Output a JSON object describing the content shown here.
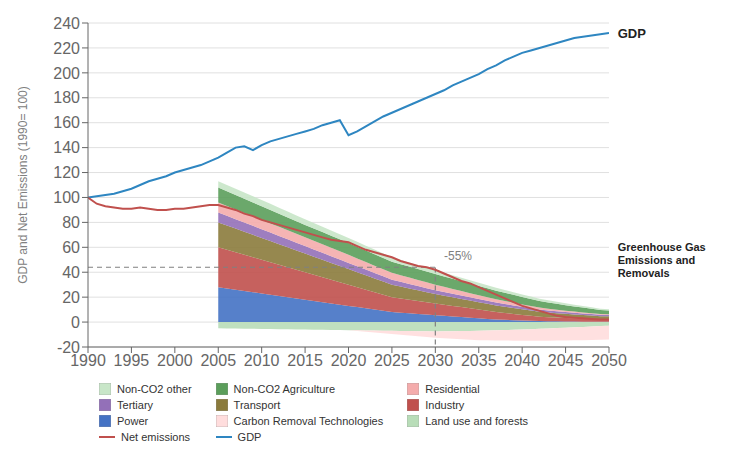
{
  "chart_data": {
    "type": "area",
    "stacked": true,
    "grid": true,
    "ylabel": "GDP and Net Emissions (1990= 100)",
    "xlim": [
      1990,
      2050
    ],
    "ylim": [
      -20,
      240
    ],
    "xticks": [
      1990,
      1995,
      2000,
      2005,
      2010,
      2015,
      2020,
      2025,
      2030,
      2035,
      2040,
      2045,
      2050
    ],
    "yticks": [
      -20,
      0,
      20,
      40,
      60,
      80,
      100,
      120,
      140,
      160,
      180,
      200,
      220,
      240
    ],
    "x": [
      1990,
      1991,
      1992,
      1993,
      1994,
      1995,
      1996,
      1997,
      1998,
      1999,
      2000,
      2001,
      2002,
      2003,
      2004,
      2005,
      2006,
      2007,
      2008,
      2009,
      2010,
      2011,
      2012,
      2013,
      2014,
      2015,
      2016,
      2017,
      2018,
      2019,
      2020,
      2021,
      2022,
      2023,
      2024,
      2025,
      2026,
      2027,
      2028,
      2029,
      2030,
      2031,
      2032,
      2033,
      2034,
      2035,
      2036,
      2037,
      2038,
      2039,
      2040,
      2041,
      2042,
      2043,
      2044,
      2045,
      2046,
      2047,
      2048,
      2049,
      2050
    ],
    "series": [
      {
        "name": "Non-CO2 other",
        "type": "area",
        "color": "#C8E6C8",
        "values": [
          null,
          null,
          null,
          null,
          null,
          null,
          null,
          null,
          null,
          null,
          null,
          null,
          null,
          null,
          null,
          5,
          5,
          5,
          5,
          5,
          5,
          4.9,
          4.8,
          4.7,
          4.6,
          4.5,
          4.4,
          4.3,
          4.2,
          4.1,
          4,
          3.9,
          3.8,
          3.7,
          3.6,
          3.5,
          3.4,
          3.3,
          3.2,
          3.1,
          3,
          2.9,
          2.8,
          2.7,
          2.6,
          2.5,
          2.4,
          2.3,
          2.2,
          2.1,
          2,
          1.9,
          1.8,
          1.7,
          1.6,
          1.5,
          1.4,
          1.3,
          1.2,
          1.1,
          1
        ]
      },
      {
        "name": "Non-CO2 Agriculture",
        "type": "area",
        "color": "#5B9E5B",
        "values": [
          null,
          null,
          null,
          null,
          null,
          null,
          null,
          null,
          null,
          null,
          null,
          null,
          null,
          null,
          null,
          12,
          11.8,
          11.6,
          11.4,
          11.2,
          11,
          10.8,
          10.6,
          10.4,
          10.2,
          10,
          9.9,
          9.8,
          9.7,
          9.6,
          9.5,
          9.4,
          9.3,
          9.2,
          9.1,
          9,
          8.9,
          8.8,
          8.7,
          8.6,
          8.5,
          8.3,
          8.1,
          7.9,
          7.7,
          7.5,
          7.2,
          6.9,
          6.6,
          6.3,
          6,
          5.7,
          5.4,
          5.1,
          4.8,
          4.5,
          4.2,
          3.9,
          3.5,
          3.2,
          3
        ]
      },
      {
        "name": "Residential",
        "type": "area",
        "color": "#F4ACAC",
        "values": [
          null,
          null,
          null,
          null,
          null,
          null,
          null,
          null,
          null,
          null,
          null,
          null,
          null,
          null,
          null,
          8,
          7.9,
          7.8,
          7.7,
          7.6,
          7.5,
          7.4,
          7.3,
          7.2,
          7.1,
          7,
          6.9,
          6.8,
          6.7,
          6.6,
          6.5,
          6.3,
          6.1,
          5.9,
          5.7,
          5.5,
          5.3,
          5.1,
          4.9,
          4.7,
          4.5,
          4.2,
          3.9,
          3.6,
          3.3,
          3,
          2.8,
          2.6,
          2.4,
          2.2,
          2,
          1.8,
          1.6,
          1.4,
          1.2,
          1,
          0.9,
          0.8,
          0.7,
          0.6,
          0.5
        ]
      },
      {
        "name": "Tertiary",
        "type": "area",
        "color": "#9370B8",
        "values": [
          null,
          null,
          null,
          null,
          null,
          null,
          null,
          null,
          null,
          null,
          null,
          null,
          null,
          null,
          null,
          8,
          7.8,
          7.6,
          7.4,
          7.2,
          7,
          6.8,
          6.6,
          6.4,
          6.2,
          6,
          5.8,
          5.6,
          5.4,
          5.2,
          5,
          4.8,
          4.6,
          4.4,
          4.2,
          4,
          3.8,
          3.6,
          3.4,
          3.2,
          3,
          2.9,
          2.8,
          2.7,
          2.6,
          2.5,
          2.4,
          2.3,
          2.2,
          2.1,
          2,
          1.9,
          1.8,
          1.7,
          1.6,
          1.5,
          1.4,
          1.3,
          1.2,
          1.1,
          1
        ]
      },
      {
        "name": "Transport",
        "type": "area",
        "color": "#8B7B3C",
        "values": [
          null,
          null,
          null,
          null,
          null,
          null,
          null,
          null,
          null,
          null,
          null,
          null,
          null,
          null,
          null,
          20,
          19.5,
          19,
          18.5,
          18,
          17.5,
          17,
          16.5,
          16,
          15.5,
          15,
          14.5,
          14,
          13.5,
          13,
          12.5,
          12,
          11.5,
          11,
          10.5,
          10,
          9.5,
          9,
          8.5,
          8,
          7.5,
          7.2,
          6.9,
          6.6,
          6.3,
          6,
          5.7,
          5.4,
          5.1,
          4.8,
          4.5,
          4.2,
          3.9,
          3.7,
          3.5,
          3.3,
          3.1,
          2.9,
          2.7,
          2.5,
          2.5
        ]
      },
      {
        "name": "Industry",
        "type": "area",
        "color": "#C0504D",
        "values": [
          null,
          null,
          null,
          null,
          null,
          null,
          null,
          null,
          null,
          null,
          null,
          null,
          null,
          null,
          null,
          32,
          31,
          30,
          29,
          28,
          27,
          26,
          25,
          24,
          23,
          22,
          21,
          20,
          19,
          18,
          17,
          16,
          15,
          14,
          13,
          12,
          11.5,
          11,
          10.5,
          10,
          9.5,
          9,
          8.5,
          8,
          7.5,
          7,
          6.5,
          6,
          5.5,
          5,
          4.5,
          4,
          3.5,
          3.2,
          3,
          2.8,
          2.6,
          2.4,
          2.2,
          2,
          2
        ]
      },
      {
        "name": "Power",
        "type": "area",
        "color": "#4472C4",
        "values": [
          null,
          null,
          null,
          null,
          null,
          null,
          null,
          null,
          null,
          null,
          null,
          null,
          null,
          null,
          null,
          28,
          27,
          26,
          25,
          24,
          23,
          22,
          21,
          20,
          19,
          18,
          17,
          16,
          15,
          14,
          13,
          12,
          11,
          10,
          9,
          8,
          7.5,
          7,
          6.5,
          6,
          5.5,
          5,
          4.5,
          4,
          3.5,
          3,
          2.5,
          2,
          1.8,
          1.5,
          1.2,
          1,
          0.8,
          0.7,
          0.6,
          0.5,
          0.4,
          0.3,
          0.3,
          0.2,
          0.2
        ]
      },
      {
        "name": "Carbon Removal Technologies",
        "type": "area",
        "color": "#FFDDDD",
        "values": [
          null,
          null,
          null,
          null,
          null,
          null,
          null,
          null,
          null,
          null,
          null,
          null,
          null,
          null,
          null,
          0,
          0,
          0,
          0,
          0,
          0,
          0,
          0,
          0,
          0,
          0,
          0,
          0,
          0,
          0,
          0,
          -0.5,
          -1,
          -1.5,
          -2,
          -2.5,
          -3,
          -3.5,
          -4,
          -4.5,
          -5,
          -5.5,
          -6,
          -6.5,
          -7,
          -7.5,
          -7.8,
          -8.1,
          -8.4,
          -8.7,
          -9,
          -9.3,
          -9.6,
          -9.8,
          -10,
          -10.2,
          -10.4,
          -10.6,
          -10.8,
          -11,
          -11
        ]
      },
      {
        "name": "Land use and forests",
        "type": "area",
        "color": "#B8DDB8",
        "values": [
          null,
          null,
          null,
          null,
          null,
          null,
          null,
          null,
          null,
          null,
          null,
          null,
          null,
          null,
          null,
          -5,
          -5.1,
          -5.2,
          -5.3,
          -5.4,
          -5.5,
          -5.6,
          -5.7,
          -5.8,
          -5.9,
          -6,
          -6.1,
          -6.2,
          -6.3,
          -6.4,
          -6.5,
          -6.6,
          -6.7,
          -6.8,
          -6.9,
          -7,
          -7.1,
          -7.2,
          -7.3,
          -7.4,
          -7.5,
          -7.4,
          -7.3,
          -7.2,
          -7.1,
          -7,
          -6.8,
          -6.6,
          -6.4,
          -6.2,
          -6,
          -5.7,
          -5.4,
          -5.1,
          -4.8,
          -4.5,
          -4.2,
          -3.9,
          -3.5,
          -3.2,
          -3
        ]
      },
      {
        "name": "Net emissions",
        "type": "line",
        "color": "#C0504D",
        "values": [
          100,
          95,
          93,
          92,
          91,
          91,
          92,
          91,
          90,
          90,
          91,
          91,
          92,
          93,
          94,
          94,
          92,
          90,
          87,
          85,
          82,
          80,
          78,
          76,
          74,
          72,
          70,
          68,
          66,
          65,
          64,
          61,
          58,
          56,
          54,
          52,
          49,
          47,
          45,
          44,
          42,
          39,
          36,
          33,
          31,
          28,
          25,
          22,
          19,
          16,
          13,
          11,
          9,
          7,
          5,
          4,
          3.5,
          3,
          2.5,
          2,
          2
        ]
      },
      {
        "name": "GDP",
        "type": "line",
        "color": "#2E86C1",
        "values": [
          100,
          101,
          102,
          103,
          105,
          107,
          110,
          113,
          115,
          117,
          120,
          122,
          124,
          126,
          129,
          132,
          136,
          140,
          141,
          138,
          142,
          145,
          147,
          149,
          151,
          153,
          155,
          158,
          160,
          162,
          150,
          153,
          157,
          161,
          165,
          168,
          171,
          174,
          177,
          180,
          183,
          186,
          190,
          193,
          196,
          199,
          203,
          206,
          210,
          213,
          216,
          218,
          220,
          222,
          224,
          226,
          228,
          229,
          230,
          231,
          232
        ]
      }
    ],
    "lines": [
      {
        "x": [
          1990,
          2030
        ],
        "y": [
          44,
          44
        ],
        "color": "gray",
        "line_style": "dashed"
      },
      {
        "x": [
          2030,
          2030
        ],
        "y": [
          -18,
          44
        ],
        "color": "gray",
        "line_style": "dashed"
      }
    ],
    "annotations": [
      {
        "text": "-55%",
        "x": 2031,
        "y": 50,
        "color": "gray"
      },
      {
        "text": "GDP",
        "x": 2051,
        "y": 232,
        "color": "#222222"
      },
      {
        "text": "Greenhouse Gas\nEmissions and\nRemovals",
        "x": 2051,
        "y": 50,
        "color": "#222222"
      }
    ]
  }
}
